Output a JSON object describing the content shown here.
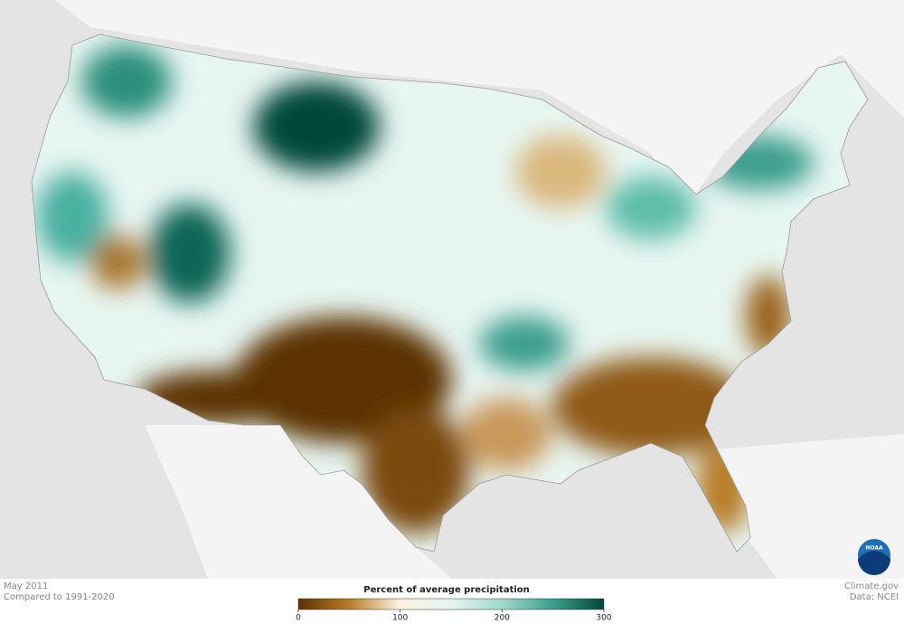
{
  "header": {
    "date": "May 2011",
    "baseline": "Compared to 1991-2020"
  },
  "legend": {
    "title": "Percent of average precipitation",
    "range": [
      0,
      300
    ],
    "ticks": [
      0,
      100,
      200,
      300
    ],
    "colors": [
      "#5c3200",
      "#b77c26",
      "#fbf3e0",
      "#e3f5f1",
      "#9fd8cc",
      "#3a9e8c",
      "#00473b"
    ]
  },
  "credits": {
    "site": "Climate.gov",
    "source": "Data: NCEI",
    "logo": "NOAA"
  }
}
